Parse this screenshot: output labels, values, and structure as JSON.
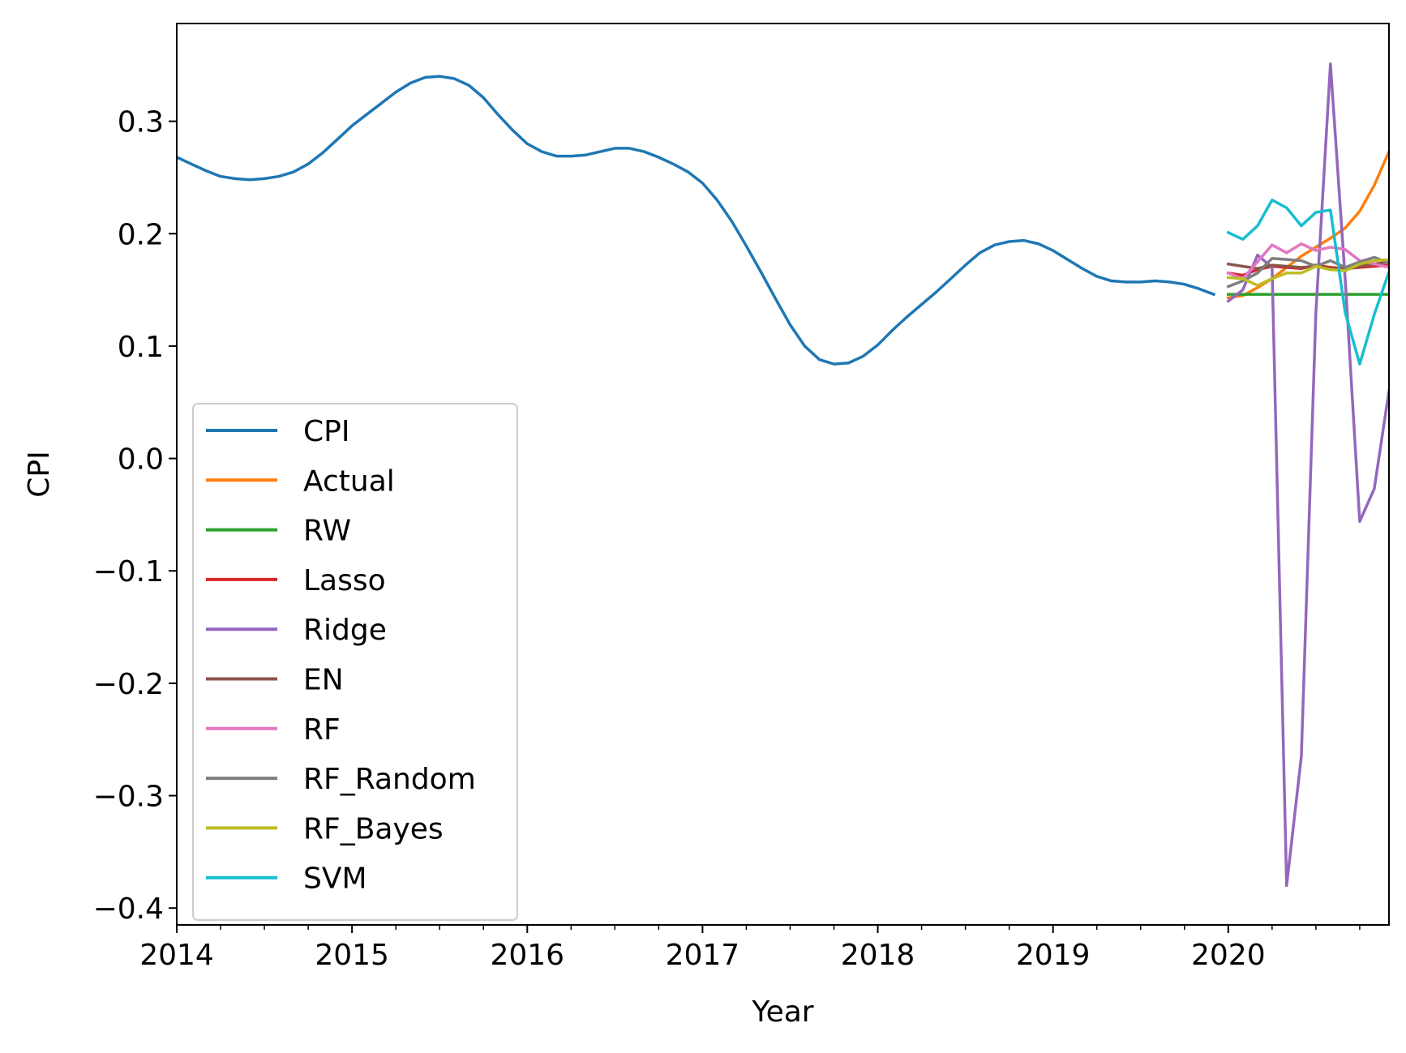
{
  "chart_data": {
    "type": "line",
    "xlabel": "Year",
    "ylabel": "CPI",
    "xlim": [
      2014.0,
      2020.917
    ],
    "ylim": [
      -0.415,
      0.387
    ],
    "x_ticks": [
      2014,
      2015,
      2016,
      2017,
      2018,
      2019,
      2020
    ],
    "x_tick_labels": [
      "2014",
      "2015",
      "2016",
      "2017",
      "2018",
      "2019",
      "2020"
    ],
    "y_ticks": [
      -0.4,
      -0.3,
      -0.2,
      -0.1,
      0.0,
      0.1,
      0.2,
      0.3
    ],
    "y_tick_labels": [
      "−0.4",
      "−0.3",
      "−0.2",
      "−0.1",
      "0.0",
      "0.1",
      "0.2",
      "0.3"
    ],
    "legend_position": "lower-left",
    "grid": false,
    "series": [
      {
        "name": "CPI",
        "color": "#1f77b4",
        "x": [
          2014.0,
          2014.083,
          2014.167,
          2014.25,
          2014.333,
          2014.417,
          2014.5,
          2014.583,
          2014.667,
          2014.75,
          2014.833,
          2014.917,
          2015.0,
          2015.083,
          2015.167,
          2015.25,
          2015.333,
          2015.417,
          2015.5,
          2015.583,
          2015.667,
          2015.75,
          2015.833,
          2015.917,
          2016.0,
          2016.083,
          2016.167,
          2016.25,
          2016.333,
          2016.417,
          2016.5,
          2016.583,
          2016.667,
          2016.75,
          2016.833,
          2016.917,
          2017.0,
          2017.083,
          2017.167,
          2017.25,
          2017.333,
          2017.417,
          2017.5,
          2017.583,
          2017.667,
          2017.75,
          2017.833,
          2017.917,
          2018.0,
          2018.083,
          2018.167,
          2018.25,
          2018.333,
          2018.417,
          2018.5,
          2018.583,
          2018.667,
          2018.75,
          2018.833,
          2018.917,
          2019.0,
          2019.083,
          2019.167,
          2019.25,
          2019.333,
          2019.417,
          2019.5,
          2019.583,
          2019.667,
          2019.75,
          2019.833,
          2019.917
        ],
        "values": [
          0.268,
          0.262,
          0.256,
          0.251,
          0.249,
          0.248,
          0.249,
          0.251,
          0.255,
          0.262,
          0.272,
          0.284,
          0.296,
          0.306,
          0.316,
          0.326,
          0.334,
          0.339,
          0.34,
          0.338,
          0.332,
          0.321,
          0.306,
          0.292,
          0.28,
          0.273,
          0.269,
          0.269,
          0.27,
          0.273,
          0.276,
          0.276,
          0.273,
          0.268,
          0.262,
          0.255,
          0.245,
          0.23,
          0.211,
          0.189,
          0.166,
          0.142,
          0.119,
          0.1,
          0.088,
          0.084,
          0.085,
          0.091,
          0.101,
          0.114,
          0.126,
          0.137,
          0.148,
          0.16,
          0.172,
          0.183,
          0.19,
          0.193,
          0.194,
          0.191,
          0.185,
          0.177,
          0.169,
          0.162,
          0.158,
          0.157,
          0.157,
          0.158,
          0.157,
          0.155,
          0.151,
          0.146
        ]
      },
      {
        "name": "Actual",
        "color": "#ff7f0e",
        "x": [
          2020.0,
          2020.083,
          2020.167,
          2020.25,
          2020.333,
          2020.417,
          2020.5,
          2020.583,
          2020.667,
          2020.75,
          2020.833,
          2020.917
        ],
        "values": [
          0.143,
          0.145,
          0.152,
          0.16,
          0.17,
          0.18,
          0.188,
          0.196,
          0.205,
          0.22,
          0.243,
          0.273
        ]
      },
      {
        "name": "RW",
        "color": "#2ca02c",
        "x": [
          2020.0,
          2020.083,
          2020.167,
          2020.25,
          2020.333,
          2020.417,
          2020.5,
          2020.583,
          2020.667,
          2020.75,
          2020.833,
          2020.917
        ],
        "values": [
          0.146,
          0.146,
          0.146,
          0.146,
          0.146,
          0.146,
          0.146,
          0.146,
          0.146,
          0.146,
          0.146,
          0.146
        ]
      },
      {
        "name": "Lasso",
        "color": "#d62728",
        "x": [
          2020.0,
          2020.083,
          2020.167,
          2020.25,
          2020.333,
          2020.417,
          2020.5,
          2020.583,
          2020.667,
          2020.75,
          2020.833,
          2020.917
        ],
        "values": [
          0.165,
          0.163,
          0.168,
          0.171,
          0.17,
          0.169,
          0.172,
          0.17,
          0.169,
          0.17,
          0.171,
          0.172
        ]
      },
      {
        "name": "Ridge",
        "color": "#9467bd",
        "x": [
          2020.0,
          2020.083,
          2020.167,
          2020.25,
          2020.333,
          2020.417,
          2020.5,
          2020.583,
          2020.667,
          2020.75,
          2020.833,
          2020.917
        ],
        "values": [
          0.14,
          0.15,
          0.181,
          0.17,
          -0.38,
          -0.265,
          0.13,
          0.351,
          0.16,
          -0.056,
          -0.027,
          0.06
        ]
      },
      {
        "name": "EN",
        "color": "#8c564b",
        "x": [
          2020.0,
          2020.083,
          2020.167,
          2020.25,
          2020.333,
          2020.417,
          2020.5,
          2020.583,
          2020.667,
          2020.75,
          2020.833,
          2020.917
        ],
        "values": [
          0.173,
          0.171,
          0.169,
          0.172,
          0.171,
          0.17,
          0.171,
          0.169,
          0.168,
          0.171,
          0.173,
          0.175
        ]
      },
      {
        "name": "RF",
        "color": "#e377c2",
        "x": [
          2020.0,
          2020.083,
          2020.167,
          2020.25,
          2020.333,
          2020.417,
          2020.5,
          2020.583,
          2020.667,
          2020.75,
          2020.833,
          2020.917
        ],
        "values": [
          0.165,
          0.16,
          0.175,
          0.19,
          0.183,
          0.191,
          0.185,
          0.188,
          0.186,
          0.176,
          0.173,
          0.17
        ]
      },
      {
        "name": "RF_Random",
        "color": "#7f7f7f",
        "x": [
          2020.0,
          2020.083,
          2020.167,
          2020.25,
          2020.333,
          2020.417,
          2020.5,
          2020.583,
          2020.667,
          2020.75,
          2020.833,
          2020.917
        ],
        "values": [
          0.153,
          0.158,
          0.165,
          0.178,
          0.177,
          0.176,
          0.171,
          0.176,
          0.17,
          0.175,
          0.179,
          0.174
        ]
      },
      {
        "name": "RF_Bayes",
        "color": "#bcbd22",
        "x": [
          2020.0,
          2020.083,
          2020.167,
          2020.25,
          2020.333,
          2020.417,
          2020.5,
          2020.583,
          2020.667,
          2020.75,
          2020.833,
          2020.917
        ],
        "values": [
          0.161,
          0.16,
          0.154,
          0.16,
          0.165,
          0.165,
          0.171,
          0.168,
          0.167,
          0.173,
          0.176,
          0.177
        ]
      },
      {
        "name": "SVM",
        "color": "#17becf",
        "x": [
          2020.0,
          2020.083,
          2020.167,
          2020.25,
          2020.333,
          2020.417,
          2020.5,
          2020.583,
          2020.667,
          2020.75,
          2020.833,
          2020.917
        ],
        "values": [
          0.201,
          0.195,
          0.207,
          0.23,
          0.223,
          0.207,
          0.219,
          0.221,
          0.13,
          0.084,
          0.128,
          0.166
        ]
      }
    ]
  }
}
